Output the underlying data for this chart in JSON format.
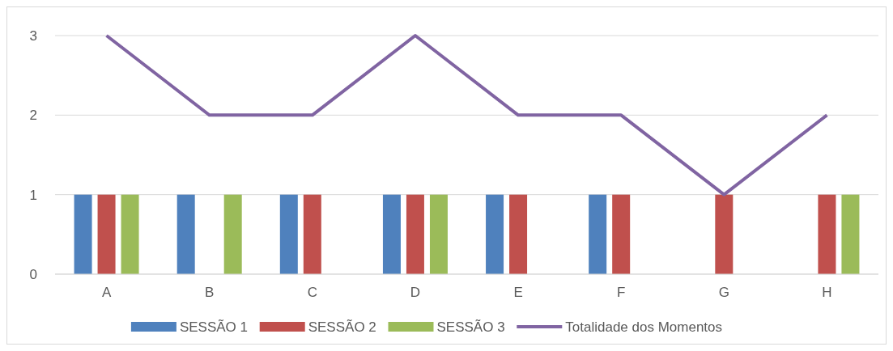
{
  "chart_data": {
    "type": "bar",
    "categories": [
      "A",
      "B",
      "C",
      "D",
      "E",
      "F",
      "G",
      "H"
    ],
    "series": [
      {
        "name": "SESSÃO 1",
        "color": "#4f81bd",
        "values": [
          1,
          1,
          1,
          1,
          1,
          1,
          null,
          null
        ]
      },
      {
        "name": "SESSÃO 2",
        "color": "#c0504d",
        "values": [
          1,
          null,
          1,
          1,
          1,
          1,
          1,
          1
        ]
      },
      {
        "name": "SESSÃO 3",
        "color": "#9bbb59",
        "values": [
          1,
          1,
          null,
          1,
          null,
          null,
          null,
          1
        ]
      },
      {
        "name": "Totalidade dos Momentos",
        "type": "line",
        "color": "#8064a2",
        "values": [
          3,
          2,
          2,
          3,
          2,
          2,
          1,
          2
        ]
      }
    ],
    "ylim": [
      0,
      3
    ],
    "yticks": [
      0,
      1,
      2,
      3
    ],
    "grid": "y",
    "legend": "bottom",
    "marker": "none",
    "line_style": "solid"
  }
}
